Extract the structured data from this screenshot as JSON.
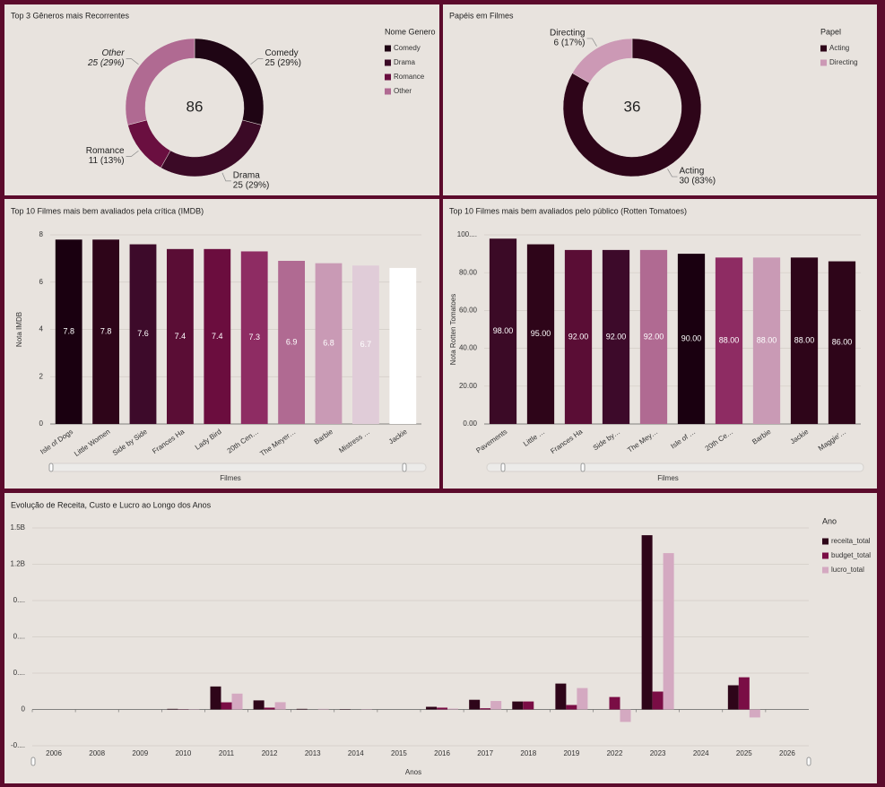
{
  "chart_data": [
    {
      "type": "donut",
      "title": "Top 3 Gêneros mais Recorrentes",
      "center_label": 86,
      "legend_title": "Nome Genero",
      "categories": [
        "Comedy",
        "Drama",
        "Romance",
        "Other"
      ],
      "values": [
        25,
        25,
        11,
        25
      ],
      "value_labels": [
        "25 (29%)",
        "25 (29%)",
        "11 (13%)",
        "25 (29%)"
      ],
      "colors": [
        "#1f0514",
        "#3b0a26",
        "#6a0f40",
        "#b06a92"
      ]
    },
    {
      "type": "donut",
      "title": "Papéis em Filmes",
      "center_label": 36,
      "legend_title": "Papel",
      "categories": [
        "Acting",
        "Directing"
      ],
      "values": [
        30,
        6
      ],
      "value_labels": [
        "30 (83%)",
        "6 (17%)"
      ],
      "colors": [
        "#2e0519",
        "#cc99b5"
      ]
    },
    {
      "type": "bar",
      "title": "Top 10 Filmes mais bem avaliados pela crítica (IMDB)",
      "x_label": "Filmes",
      "y_label": "Nota IMDB",
      "categories": [
        "Isle of Dogs",
        "Little Women",
        "Side by Side",
        "Frances Ha",
        "Lady Bird",
        "20th Cen…",
        "The Meyer…",
        "Barbie",
        "Mistress …",
        "Jackie"
      ],
      "values": [
        7.8,
        7.8,
        7.6,
        7.4,
        7.4,
        7.3,
        6.9,
        6.8,
        6.7,
        6.6
      ],
      "colors": [
        "#1a0010",
        "#2e0519",
        "#3d0a2a",
        "#5a0d35",
        "#6b0d3e",
        "#8e2c63",
        "#b06a92",
        "#c99ab5",
        "#e0ccd8",
        "#ffffff"
      ],
      "ylim": [
        0,
        8
      ],
      "yticks": [
        0,
        2,
        4,
        6,
        8
      ],
      "grid": true
    },
    {
      "type": "bar",
      "title": "Top 10 Filmes mais bem avaliados pelo público (Rotten Tomatoes)",
      "x_label": "Filmes",
      "y_label": "Nota Rotten Tomatoes",
      "categories": [
        "Pavements",
        "Little …",
        "Frances Ha",
        "Side by…",
        "The Mey…",
        "Isle of …",
        "20th Ce…",
        "Barbie",
        "Jackie",
        "Maggie'…"
      ],
      "values": [
        98,
        95,
        92,
        92,
        92,
        90,
        88,
        88,
        88,
        86
      ],
      "value_labels": [
        "98.00",
        "95.00",
        "92.00",
        "92.00",
        "92.00",
        "90.00",
        "88.00",
        "88.00",
        "88.00",
        "86.00"
      ],
      "colors": [
        "#3b0a26",
        "#2e0519",
        "#5a0d35",
        "#3d0a2a",
        "#b06a92",
        "#1a0010",
        "#8e2c63",
        "#c99ab5",
        "#2e0519",
        "#2e0519"
      ],
      "ylim": [
        0,
        100
      ],
      "yticks": [
        {
          "value": 0,
          "label": "0.00"
        },
        {
          "value": 20,
          "label": "20.00"
        },
        {
          "value": 40,
          "label": "40.00"
        },
        {
          "value": 60,
          "label": "60.00"
        },
        {
          "value": 80,
          "label": "80.00"
        },
        {
          "value": 100,
          "label": "100...."
        }
      ],
      "grid": true
    },
    {
      "type": "bar",
      "title": "Evolução de Receita, Custo e Lucro ao Longo dos Anos",
      "x_label": "Anos",
      "legend_title": "Ano",
      "categories": [
        "2006",
        "2008",
        "2009",
        "2010",
        "2011",
        "2012",
        "2013",
        "2014",
        "2015",
        "2016",
        "2017",
        "2018",
        "2019",
        "2022",
        "2023",
        "2024",
        "2025",
        "2026"
      ],
      "series": [
        {
          "name": "receita_total",
          "color": "#2e0519",
          "values": [
            0,
            0,
            0,
            5000000,
            190000000,
            75000000,
            5000000,
            3000000,
            0,
            22000000,
            80000000,
            66000000,
            214000000,
            0,
            1440000000,
            0,
            200000000,
            0
          ]
        },
        {
          "name": "budget_total",
          "color": "#7a0d45",
          "values": [
            0,
            0,
            0,
            2000000,
            59000000,
            15000000,
            0,
            0,
            0,
            15000000,
            10000000,
            66000000,
            37000000,
            103000000,
            148000000,
            0,
            266000000,
            0
          ]
        },
        {
          "name": "lucro_total",
          "color": "#d4a9c1",
          "values": [
            0,
            0,
            0,
            3000000,
            131000000,
            60000000,
            5000000,
            3000000,
            0,
            7000000,
            70000000,
            0,
            177000000,
            -103000000,
            1292000000,
            0,
            -66000000,
            0
          ]
        }
      ],
      "ylim": [
        -300000000,
        1500000000
      ],
      "yticks": [
        {
          "value": -300000000,
          "label": "-0...."
        },
        0,
        {
          "value": 300000000,
          "label": "0...."
        },
        {
          "value": 600000000,
          "label": "0...."
        },
        {
          "value": 900000000,
          "label": "0...."
        },
        {
          "value": 1200000000,
          "label": "1.2B"
        },
        {
          "value": 1500000000,
          "label": "1.5B"
        }
      ],
      "grid": true
    }
  ]
}
